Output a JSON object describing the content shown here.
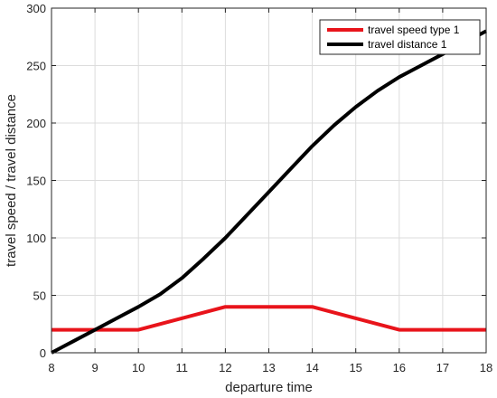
{
  "chart_data": {
    "type": "line",
    "title": "",
    "xlabel": "departure time",
    "ylabel": "travel speed / travel distance",
    "xlim": [
      8,
      18
    ],
    "ylim": [
      0,
      300
    ],
    "xticks": [
      8,
      9,
      10,
      11,
      12,
      13,
      14,
      15,
      16,
      17,
      18
    ],
    "yticks": [
      0,
      50,
      100,
      150,
      200,
      250,
      300
    ],
    "grid": true,
    "legend_position": "top-right",
    "series": [
      {
        "name": "travel speed type 1",
        "color": "#e8141b",
        "x": [
          8,
          10,
          12,
          14,
          16,
          18
        ],
        "y": [
          20,
          20,
          40,
          40,
          20,
          20
        ]
      },
      {
        "name": "travel distance 1",
        "color": "#000000",
        "x": [
          8,
          8.5,
          9,
          9.5,
          10,
          10.5,
          11,
          11.5,
          12,
          12.5,
          13,
          13.5,
          14,
          14.5,
          15,
          15.5,
          16,
          16.5,
          17,
          17.5,
          18
        ],
        "y": [
          0,
          10,
          20,
          30,
          40,
          51,
          65,
          82,
          100,
          120,
          140,
          160,
          180,
          198,
          214,
          228,
          240,
          250,
          260,
          270,
          280
        ]
      }
    ]
  }
}
